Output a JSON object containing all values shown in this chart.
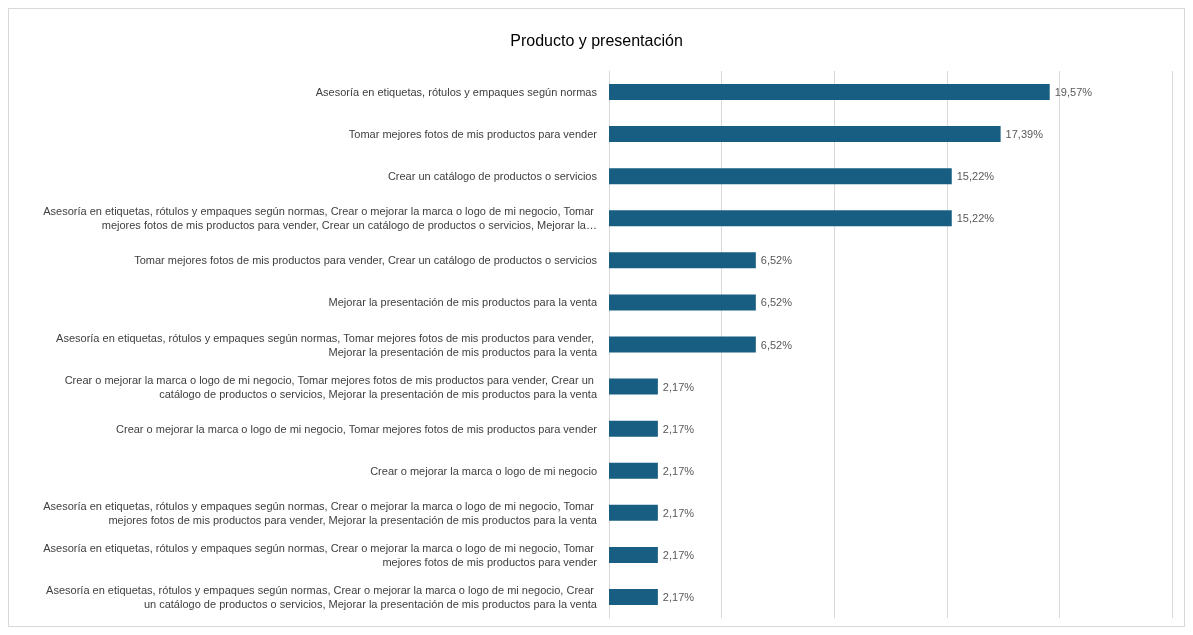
{
  "chart_data": {
    "type": "bar",
    "orientation": "horizontal",
    "title": "Producto y presentación",
    "categories": [
      "Asesoría en etiquetas, rótulos y empaques según normas",
      "Tomar mejores fotos de mis productos para vender",
      "Crear un catálogo de productos o servicios",
      "Asesoría en etiquetas, rótulos y empaques según normas, Crear o mejorar la marca o logo de mi negocio, Tomar mejores fotos de mis productos para vender, Crear un catálogo de productos o servicios, Mejorar la…",
      "Tomar mejores fotos de mis productos para vender, Crear un catálogo de productos o servicios",
      "Mejorar la presentación de mis productos para la venta",
      "Asesoría en etiquetas, rótulos y empaques según normas, Tomar mejores fotos de mis productos para vender, Mejorar la presentación de mis productos para la venta",
      "Crear o mejorar la marca o logo de mi negocio, Tomar mejores fotos de mis productos para vender, Crear un catálogo de productos o servicios, Mejorar la presentación de mis productos para la venta",
      "Crear o mejorar la marca o logo de mi negocio, Tomar mejores fotos de mis productos para vender",
      "Crear o mejorar la marca o logo de mi negocio",
      "Asesoría en etiquetas, rótulos y empaques según normas, Crear o mejorar la marca o logo de mi negocio, Tomar mejores fotos de mis productos para vender, Mejorar la presentación de mis productos para la venta",
      "Asesoría en etiquetas, rótulos y empaques según normas, Crear o mejorar la marca o logo de mi negocio, Tomar mejores fotos de mis productos para vender",
      "Asesoría en etiquetas, rótulos y empaques según normas, Crear o mejorar la marca o logo de mi negocio, Crear un catálogo de productos o servicios, Mejorar la presentación de mis productos para la venta"
    ],
    "values": [
      19.57,
      17.39,
      15.22,
      15.22,
      6.52,
      6.52,
      6.52,
      2.17,
      2.17,
      2.17,
      2.17,
      2.17,
      2.17
    ],
    "value_labels": [
      "19,57%",
      "17,39%",
      "15,22%",
      "15,22%",
      "6,52%",
      "6,52%",
      "6,52%",
      "2,17%",
      "2,17%",
      "2,17%",
      "2,17%",
      "2,17%",
      "2,17%"
    ],
    "color": "#175e82",
    "xlim": [
      0,
      25
    ],
    "xticks": [
      0,
      5,
      10,
      15,
      20,
      25
    ],
    "grid": "x",
    "tick_labels": "y"
  }
}
